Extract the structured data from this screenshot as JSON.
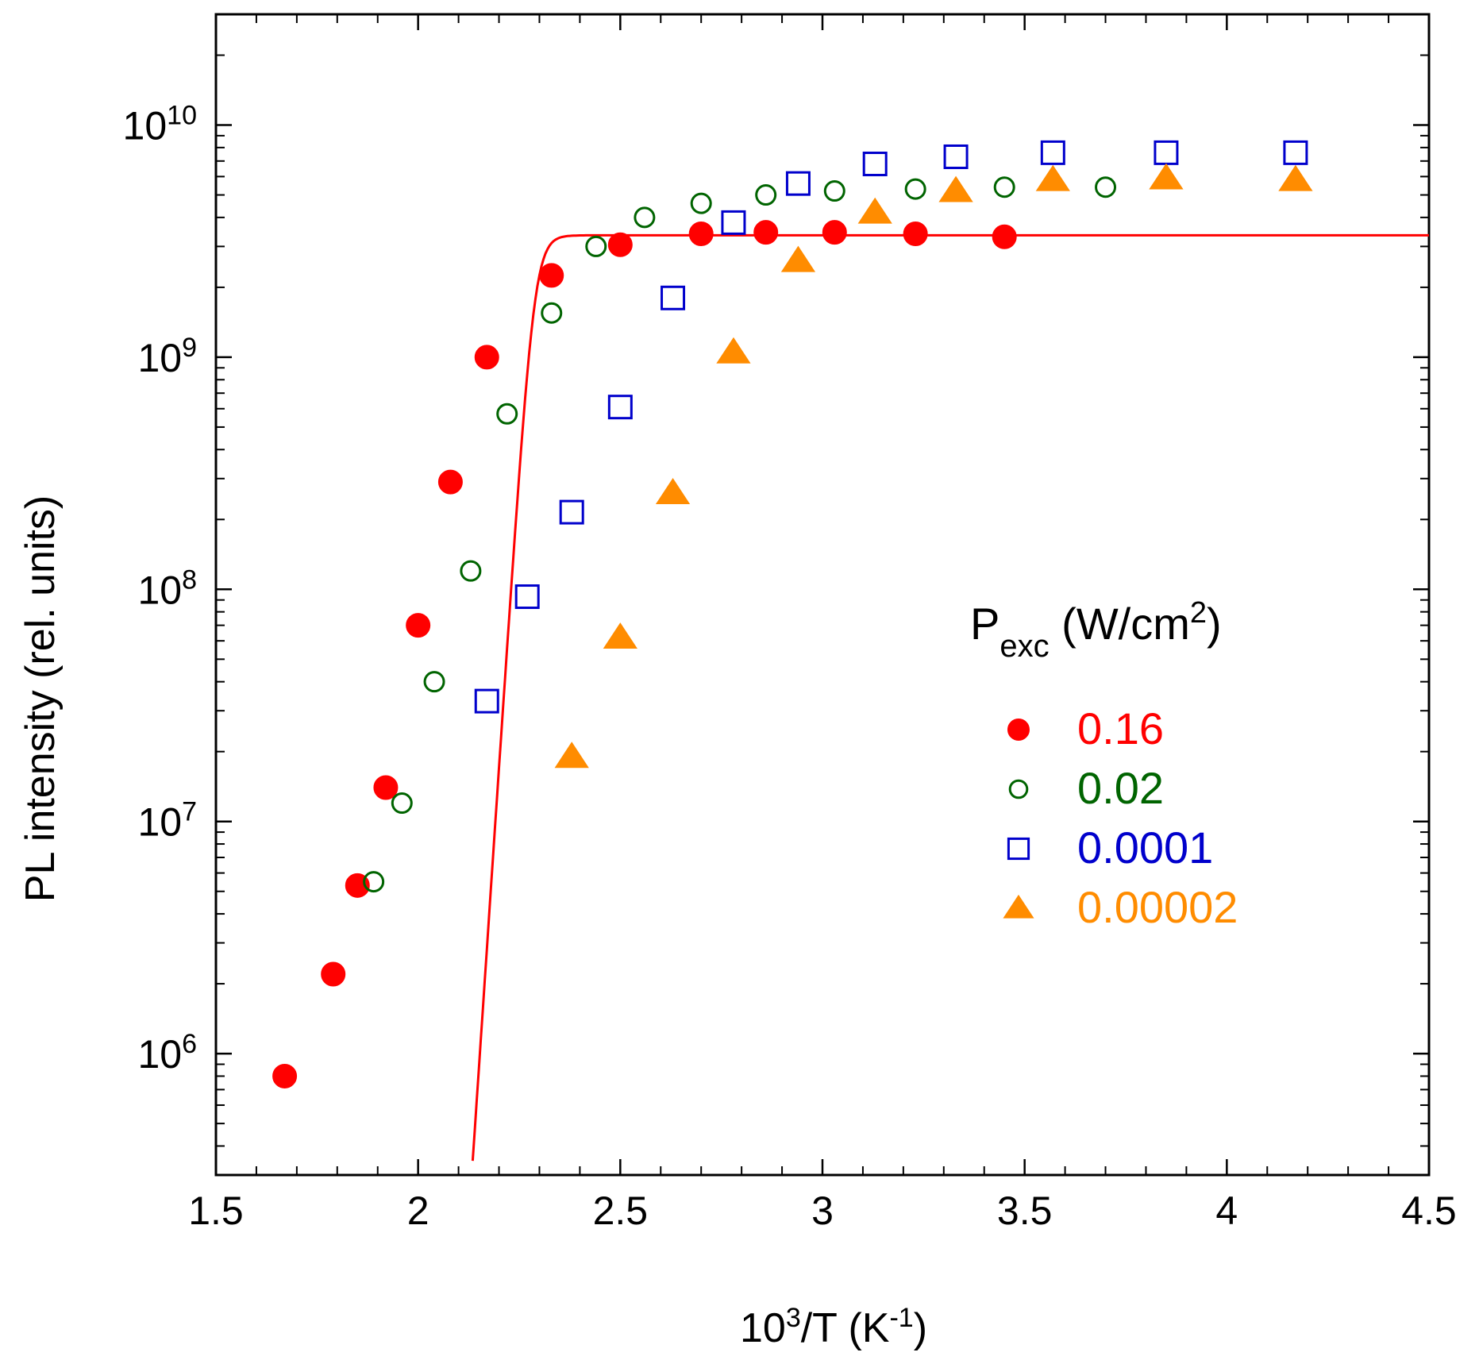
{
  "chart_data": {
    "type": "scatter",
    "xlabel": "10³/T (K⁻¹)",
    "xlabel_parts": {
      "base": "10",
      "sup": "3",
      "mid": "/T (K",
      "sup2": "-1",
      "end": ")"
    },
    "ylabel": "PL intensity (rel. units)",
    "xlim": [
      1.5,
      4.5
    ],
    "ylim": [
      300000,
      30000000000
    ],
    "yscale": "log",
    "x_ticks": [
      "1.5",
      "2",
      "2.5",
      "3",
      "3.5",
      "4",
      "4.5"
    ],
    "x_tick_values": [
      1.5,
      2,
      2.5,
      3,
      3.5,
      4,
      4.5
    ],
    "y_tick_labels": [
      {
        "value": 1000000,
        "base": "10",
        "exp": "6"
      },
      {
        "value": 10000000,
        "base": "10",
        "exp": "7"
      },
      {
        "value": 100000000,
        "base": "10",
        "exp": "8"
      },
      {
        "value": 1000000000,
        "base": "10",
        "exp": "9"
      },
      {
        "value": 10000000000,
        "base": "10",
        "exp": "10"
      }
    ],
    "legend": {
      "title_main": "P",
      "title_sub": "exc",
      "title_rest": " (W/cm",
      "title_sup": "2",
      "title_end": ")",
      "position": "center-right"
    },
    "series": [
      {
        "name": "0.16",
        "marker": "filled-circle",
        "color": "#ff0000",
        "x": [
          1.67,
          1.79,
          1.85,
          1.92,
          2.0,
          2.08,
          2.17,
          2.33,
          2.5,
          2.7,
          2.86,
          3.03,
          3.23,
          3.45
        ],
        "y": [
          800000,
          2200000,
          5300000,
          14000000,
          70000000,
          290000000,
          1000000000,
          2250000000,
          3050000000,
          3400000000,
          3450000000,
          3450000000,
          3400000000,
          3300000000
        ]
      },
      {
        "name": "0.02",
        "marker": "open-circle",
        "color": "#006400",
        "x": [
          1.89,
          1.96,
          2.04,
          2.13,
          2.22,
          2.33,
          2.44,
          2.56,
          2.7,
          2.86,
          3.03,
          3.23,
          3.45,
          3.7
        ],
        "y": [
          5500000,
          12000000,
          40000000,
          120000000,
          570000000,
          1550000000,
          3000000000,
          4000000000,
          4600000000,
          5000000000,
          5200000000,
          5300000000,
          5400000000,
          5400000000
        ]
      },
      {
        "name": "0.0001",
        "marker": "open-square",
        "color": "#0000cc",
        "x": [
          2.17,
          2.27,
          2.38,
          2.5,
          2.63,
          2.78,
          2.94,
          3.13,
          3.33,
          3.57,
          3.85,
          4.17
        ],
        "y": [
          33000000,
          93000000,
          215000000,
          610000000,
          1800000000,
          3800000000,
          5600000000,
          6800000000,
          7300000000,
          7600000000,
          7600000000,
          7600000000
        ]
      },
      {
        "name": "0.00002",
        "marker": "filled-triangle",
        "color": "#ff8c00",
        "x": [
          2.38,
          2.5,
          2.63,
          2.78,
          2.94,
          3.13,
          3.33,
          3.57,
          3.85,
          4.17
        ],
        "y": [
          19000000,
          62000000,
          260000000,
          1050000000,
          2600000000,
          4200000000,
          5200000000,
          5800000000,
          5900000000,
          5800000000
        ]
      }
    ],
    "fit": {
      "name": "fit-curve",
      "color": "#ff0000",
      "plateau": 3350000000,
      "activation_k": 60,
      "x_half": 2.288
    }
  }
}
